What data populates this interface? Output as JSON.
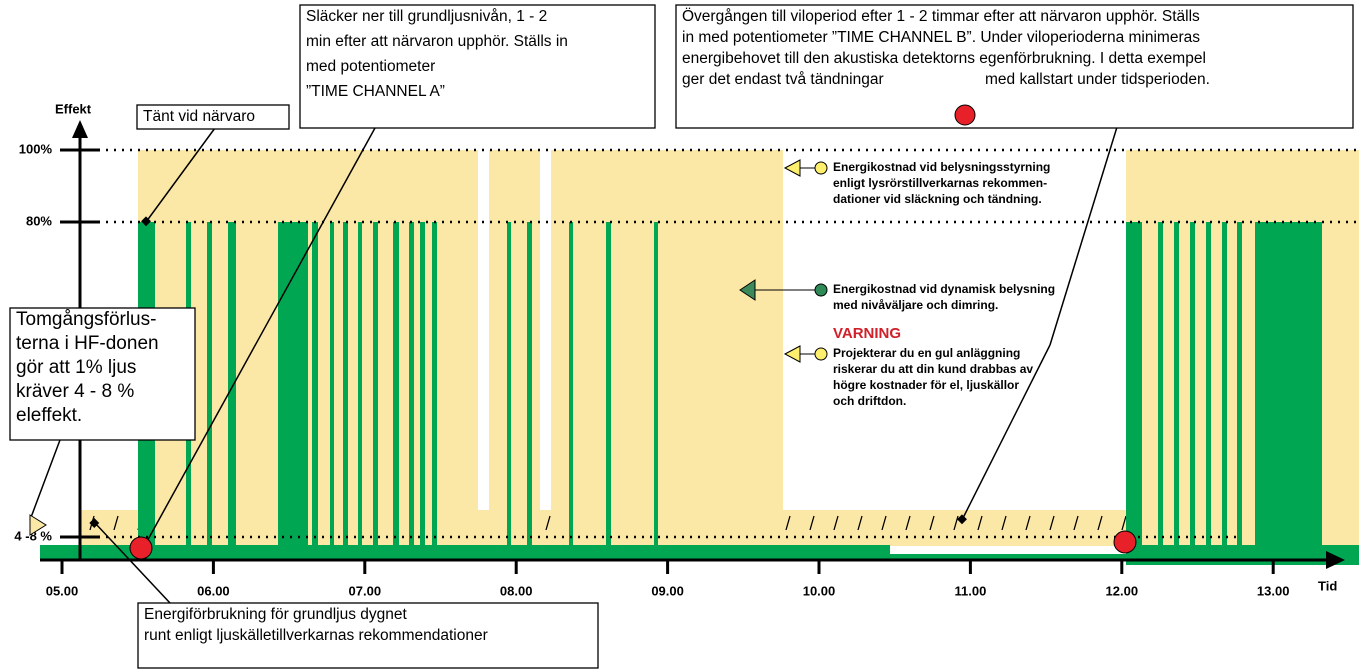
{
  "axis": {
    "y_label": "Effekt",
    "x_label": "Tid",
    "y_ticks": [
      "100%",
      "80%",
      "4 -8 %"
    ],
    "x_ticks": [
      "05.00",
      "06.00",
      "07.00",
      "08.00",
      "09.00",
      "10.00",
      "11.00",
      "12.00",
      "13.00"
    ]
  },
  "callouts": [
    {
      "lines": [
        "Tänt vid närvaro"
      ]
    },
    {
      "lines": [
        "Släcker ner till grundljusnivån, 1 - 2",
        "min efter att närvaron upphör. Ställs in",
        "med potentiometer",
        "”TIME CHANNEL A”"
      ]
    },
    {
      "lines": [
        "Övergången till viloperiod efter 1 - 2 timmar efter att närvaron upphör. Ställs",
        "in med potentiometer ”TIME CHANNEL B”. Under viloperioderna minimeras",
        "energibehovet till den akustiska detektorns egenförbrukning. I detta exempel",
        "ger det endast två tändningar",
        "med kallstart under tidsperioden."
      ]
    },
    {
      "lines": [
        "Tomgångsförlus-",
        "terna i HF-donen",
        "gör att 1% ljus",
        "kräver 4 - 8 %",
        "eleffekt."
      ]
    },
    {
      "lines": [
        "Energiförbrukning för grundljus dygnet",
        "runt enligt ljuskälletillverkarnas rekommendationer"
      ]
    }
  ],
  "legend": {
    "yellow": [
      "Energikostnad vid belysningsstyrning",
      "enligt lysrörstillverkarnas rekommen-",
      "dationer vid släckning och tändning."
    ],
    "green": [
      "Energikostnad vid dynamisk belysning",
      "med nivåväljare och dimring."
    ],
    "warning_title": "VARNING",
    "warning": [
      "Projekterar du en gul anläggning",
      "riskerar du att din kund drabbas av",
      "högre kostnader för el, ljuskällor",
      "och driftdon."
    ]
  }
}
